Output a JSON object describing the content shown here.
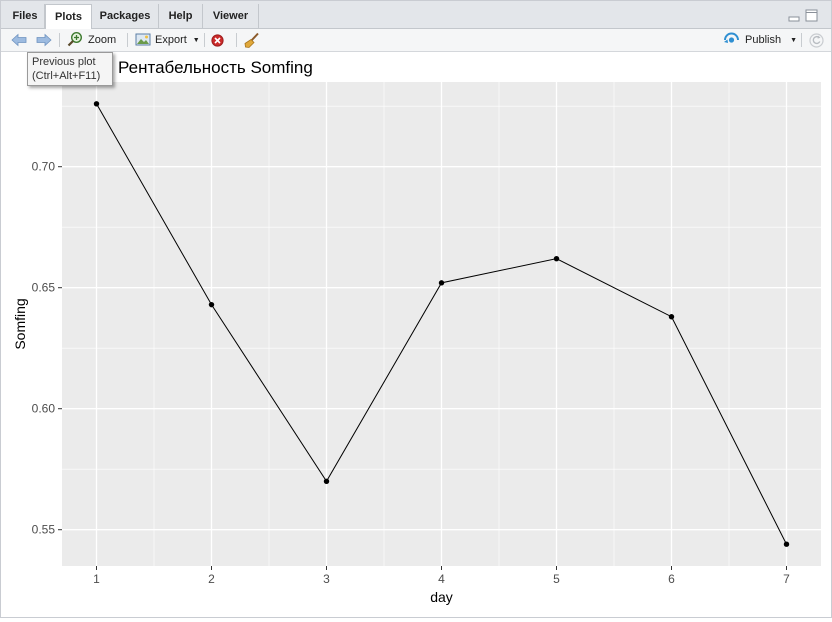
{
  "tabs": [
    "Files",
    "Plots",
    "Packages",
    "Help",
    "Viewer"
  ],
  "active_tab": "Plots",
  "toolbar": {
    "back_icon": "arrow-left-icon",
    "forward_icon": "arrow-right-icon",
    "zoom_label": "Zoom",
    "export_label": "Export",
    "publish_label": "Publish",
    "remove_icon": "remove-plot-icon",
    "clear_icon": "broom-icon",
    "refresh_icon": "refresh-icon"
  },
  "tooltip": {
    "line1": "Previous plot",
    "line2": "(Ctrl+Alt+F11)"
  },
  "chart_data": {
    "type": "line",
    "title": "ин1 Рентабельность Somfing",
    "xlabel": "day",
    "ylabel": "Somfing",
    "x": [
      1,
      2,
      3,
      4,
      5,
      6,
      7
    ],
    "values": [
      0.726,
      0.643,
      0.57,
      0.652,
      0.662,
      0.638,
      0.544
    ],
    "xticks": [
      "1",
      "2",
      "3",
      "4",
      "5",
      "6",
      "7"
    ],
    "yticks": [
      "0.55",
      "0.60",
      "0.65",
      "0.70"
    ],
    "xlim": [
      0.7,
      7.3
    ],
    "ylim": [
      0.535,
      0.735
    ],
    "grid": true,
    "colors": {
      "panel": "#EBEBEB",
      "grid": "#FFFFFF",
      "line": "#000000"
    }
  }
}
